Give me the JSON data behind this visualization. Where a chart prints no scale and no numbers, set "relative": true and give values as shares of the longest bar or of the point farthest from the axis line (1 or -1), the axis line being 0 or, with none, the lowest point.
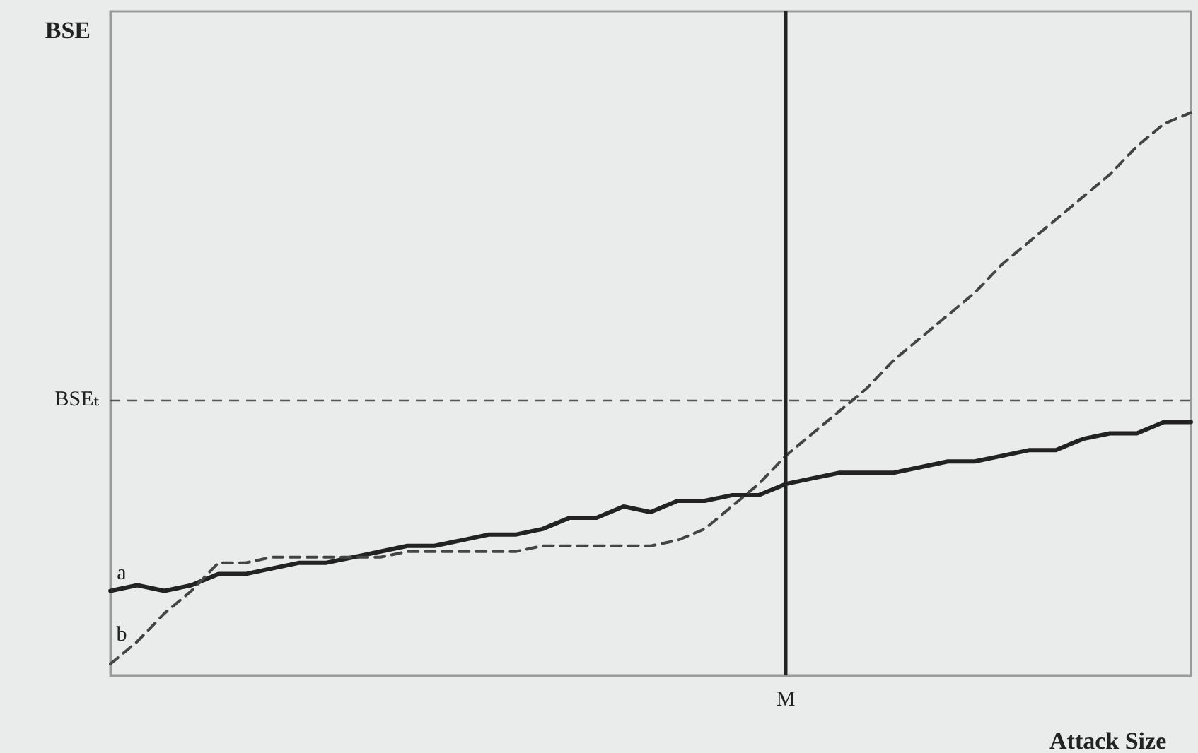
{
  "chart_data": {
    "type": "line",
    "relative": true,
    "xlabel": "Attack Size",
    "ylabel": "BSE",
    "annotations": [
      "M"
    ],
    "marker": "none",
    "categories": [
      null,
      null,
      null,
      null,
      null,
      null,
      null,
      null,
      null,
      null,
      null,
      null,
      null,
      null,
      null,
      null,
      null,
      null,
      null,
      null,
      null,
      null,
      null,
      null,
      null,
      null,
      null,
      null,
      null,
      null,
      null,
      null,
      null,
      null,
      null,
      null,
      null,
      null,
      null,
      null,
      null
    ],
    "series": [
      {
        "name": "a",
        "color": "#222222",
        "line_style": "solid",
        "values": [
          0.15,
          0.16,
          0.15,
          0.16,
          0.18,
          0.18,
          0.19,
          0.2,
          0.2,
          0.21,
          0.22,
          0.23,
          0.23,
          0.24,
          0.25,
          0.25,
          0.26,
          0.28,
          0.28,
          0.3,
          0.29,
          0.31,
          0.31,
          0.32,
          0.32,
          0.34,
          0.35,
          0.36,
          0.36,
          0.36,
          0.37,
          0.38,
          0.38,
          0.39,
          0.4,
          0.4,
          0.42,
          0.43,
          0.43,
          0.45,
          0.45
        ]
      },
      {
        "name": "b",
        "color": "#444444",
        "line_style": "dashed",
        "values": [
          0.02,
          0.06,
          0.11,
          0.15,
          0.2,
          0.2,
          0.21,
          0.21,
          0.21,
          0.21,
          0.21,
          0.22,
          0.22,
          0.22,
          0.22,
          0.22,
          0.23,
          0.23,
          0.23,
          0.23,
          0.23,
          0.24,
          0.26,
          0.3,
          0.34,
          0.39,
          0.43,
          0.47,
          0.51,
          0.56,
          0.6,
          0.64,
          0.68,
          0.73,
          0.77,
          0.81,
          0.85,
          0.89,
          0.94,
          0.98,
          1.0
        ]
      }
    ],
    "ref_lines": [
      {
        "axis": "y",
        "value": 0.49,
        "label": "BSEₜ",
        "color": "#555555",
        "line_style": "dashed"
      }
    ]
  }
}
